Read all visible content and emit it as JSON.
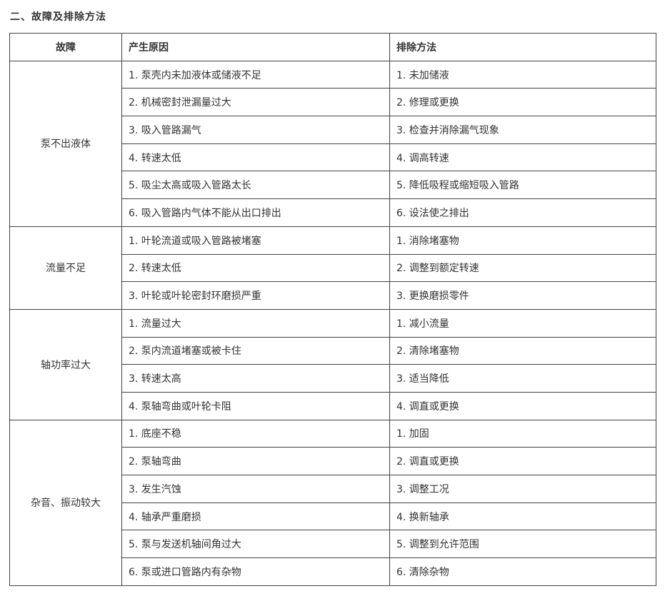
{
  "page": {
    "title": "二、故障及排除方法"
  },
  "colors": {
    "background": "#ffffff",
    "border": "#424242",
    "text": "#333333"
  },
  "table": {
    "headers": {
      "fault": "故障",
      "cause": "产生原因",
      "solution": "排除方法"
    },
    "sections": [
      {
        "fault": "泵不出液体",
        "rows": [
          {
            "cause": "1. 泵壳内未加液体或储液不足",
            "solution": "1. 未加储液"
          },
          {
            "cause": "2. 机械密封泄漏量过大",
            "solution": "2. 修理或更换"
          },
          {
            "cause": "3. 吸入管路漏气",
            "solution": "3. 检查并消除漏气现象"
          },
          {
            "cause": "4. 转速太低",
            "solution": "4. 调高转速"
          },
          {
            "cause": "5. 吸尘太高或吸入管路太长",
            "solution": "5. 降低吸程或缩短吸入管路"
          },
          {
            "cause": "6. 吸入管路内气体不能从出口排出",
            "solution": "6. 设法使之排出"
          }
        ]
      },
      {
        "fault": "流量不足",
        "rows": [
          {
            "cause": "1. 叶轮流道或吸入管路被堵塞",
            "solution": "1. 消除堵塞物"
          },
          {
            "cause": "2. 转速太低",
            "solution": "2. 调整到额定转速"
          },
          {
            "cause": "3. 叶轮或叶轮密封环磨损严重",
            "solution": "3. 更换磨损零件"
          }
        ]
      },
      {
        "fault": "轴功率过大",
        "rows": [
          {
            "cause": "1. 流量过大",
            "solution": "1. 减小流量"
          },
          {
            "cause": "2. 泵内流道堵塞或被卡住",
            "solution": "2. 清除堵塞物"
          },
          {
            "cause": "3. 转速太高",
            "solution": "3. 适当降低"
          },
          {
            "cause": "4. 泵轴弯曲或叶轮卡阻",
            "solution": "4. 调直或更换"
          }
        ]
      },
      {
        "fault": "杂音、振动较大",
        "rows": [
          {
            "cause": "1. 底座不稳",
            "solution": "1. 加固"
          },
          {
            "cause": "2. 泵轴弯曲",
            "solution": "2. 调直或更换"
          },
          {
            "cause": "3. 发生汽蚀",
            "solution": "3. 调整工况"
          },
          {
            "cause": "4. 轴承严重磨损",
            "solution": "4. 换新轴承"
          },
          {
            "cause": "5. 泵与发送机轴间角过大",
            "solution": "5. 调整到允许范围"
          },
          {
            "cause": "6. 泵或进口管路内有杂物",
            "solsolution": "",
            "solution": "6. 清除杂物"
          }
        ]
      }
    ]
  }
}
